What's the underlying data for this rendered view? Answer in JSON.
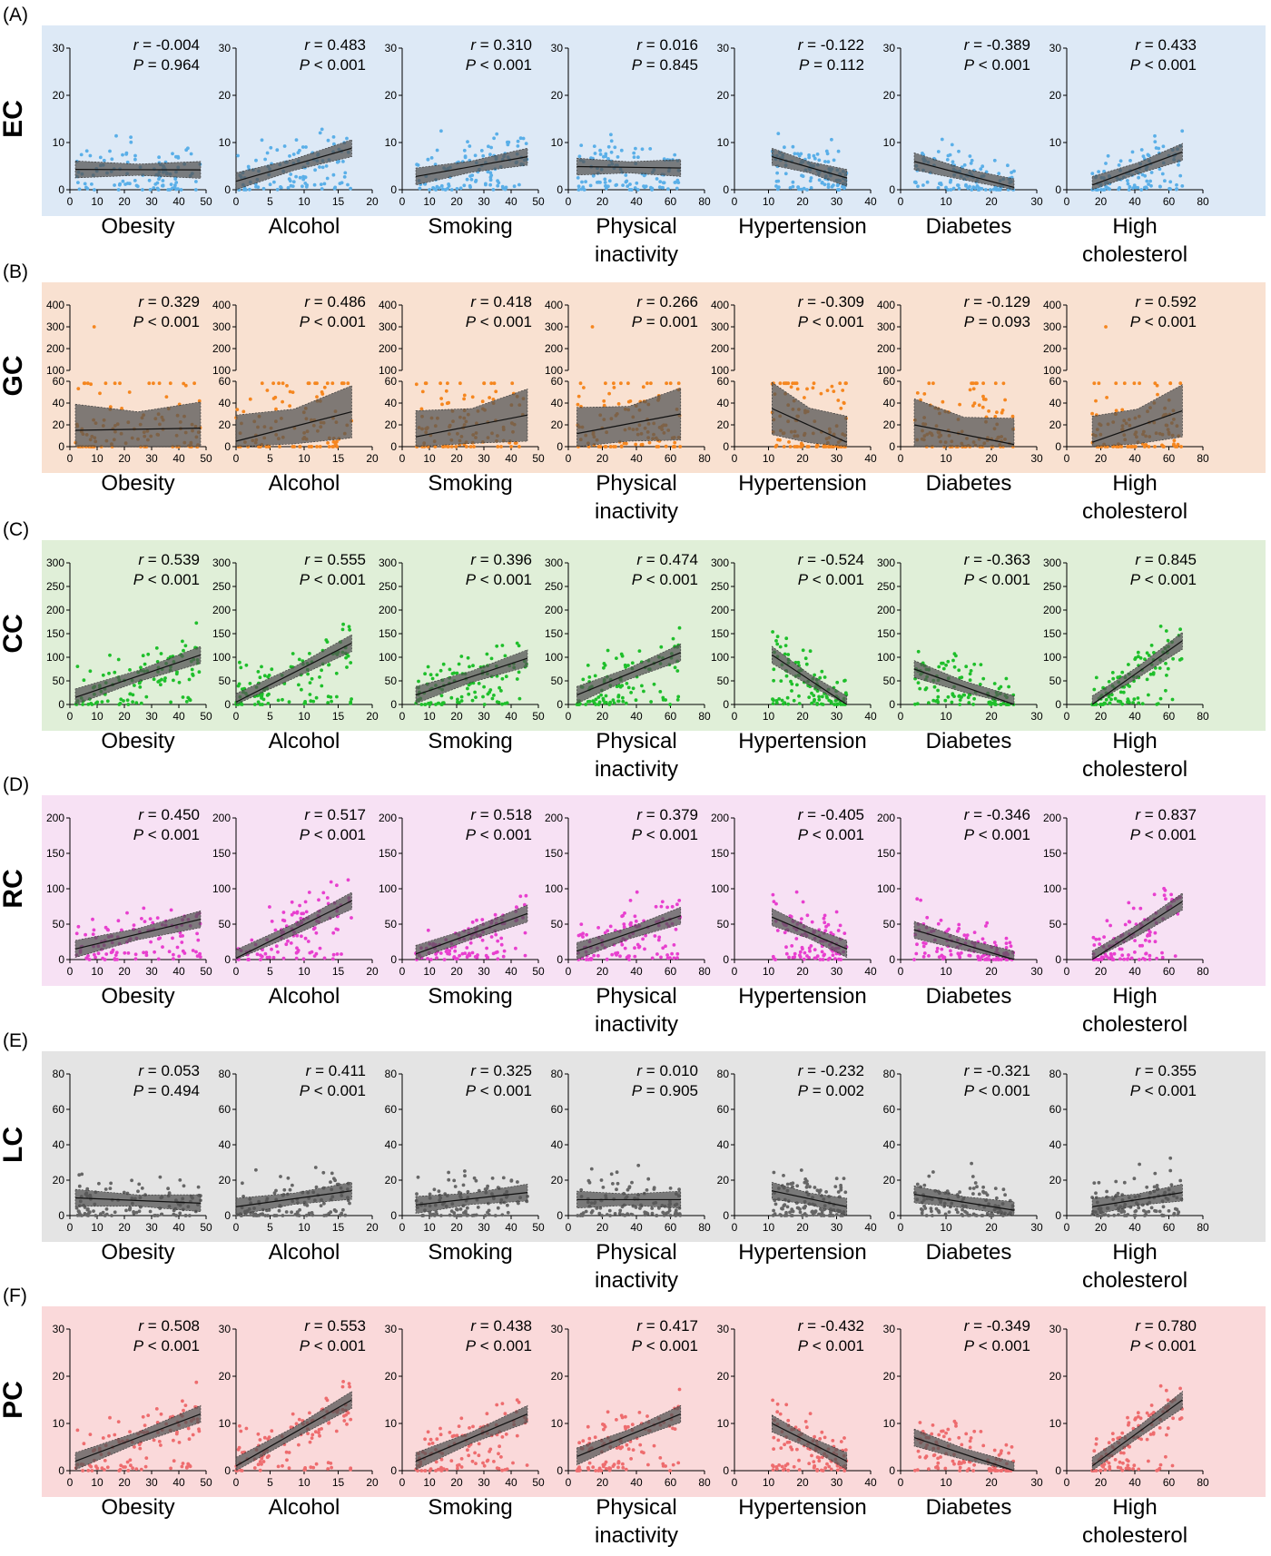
{
  "figure": {
    "x_labels": [
      [
        "Obesity"
      ],
      [
        "Alcohol"
      ],
      [
        "Smoking"
      ],
      [
        "Physical",
        "inactivity"
      ],
      [
        "Hypertension"
      ],
      [
        "Diabetes"
      ],
      [
        "High",
        "cholesterol"
      ]
    ],
    "x_ranges": [
      [
        0,
        50
      ],
      [
        0,
        20
      ],
      [
        0,
        50
      ],
      [
        0,
        80
      ],
      [
        0,
        40
      ],
      [
        0,
        30
      ],
      [
        0,
        80
      ]
    ],
    "x_ticks": [
      [
        0,
        10,
        20,
        30,
        40,
        50
      ],
      [
        0,
        5,
        10,
        15,
        20
      ],
      [
        0,
        10,
        20,
        30,
        40,
        50
      ],
      [
        0,
        20,
        40,
        60,
        80
      ],
      [
        0,
        10,
        20,
        30,
        40
      ],
      [
        0,
        10,
        20,
        30
      ],
      [
        0,
        20,
        40,
        60,
        80
      ]
    ],
    "x_extents": [
      [
        2,
        48
      ],
      [
        0,
        17
      ],
      [
        5,
        46
      ],
      [
        5,
        66
      ],
      [
        11,
        33
      ],
      [
        3,
        25
      ],
      [
        15,
        68
      ]
    ]
  },
  "chart_data": [
    {
      "type": "scatter",
      "panel": "(A)",
      "row_label": "EC",
      "color": "#5aafe8",
      "background": "#dde9f6",
      "ylim": [
        0,
        30
      ],
      "yticks": [
        0,
        10,
        20,
        30
      ],
      "panels": [
        {
          "x_label": "Obesity",
          "r": "-0.004",
          "P": "= 0.964",
          "fit": [
            4.3,
            4.2
          ]
        },
        {
          "x_label": "Alcohol",
          "r": "0.483",
          "P": "< 0.001",
          "fit": [
            1.8,
            8.8
          ]
        },
        {
          "x_label": "Smoking",
          "r": "0.310",
          "P": "< 0.001",
          "fit": [
            2.8,
            7.0
          ]
        },
        {
          "x_label": "Physical inactivity",
          "r": "0.016",
          "P": "= 0.845",
          "fit": [
            4.9,
            4.6
          ]
        },
        {
          "x_label": "Hypertension",
          "r": "-0.122",
          "P": "= 0.112",
          "fit": [
            7.0,
            2.5
          ]
        },
        {
          "x_label": "Diabetes",
          "r": "-0.389",
          "P": "< 0.001",
          "fit": [
            6.0,
            0.5
          ]
        },
        {
          "x_label": "High cholesterol",
          "r": "0.433",
          "P": "< 0.001",
          "fit": [
            1.0,
            8.0
          ]
        }
      ]
    },
    {
      "type": "scatter",
      "panel": "(B)",
      "row_label": "GC",
      "color": "#f5861f",
      "background": "#f9e1d1",
      "ylim": [
        0,
        400
      ],
      "yticks": [
        0,
        20,
        40,
        60,
        100,
        200,
        300,
        400
      ],
      "axis_break": true,
      "panels": [
        {
          "x_label": "Obesity",
          "r": "0.329",
          "P": "< 0.001",
          "fit": [
            15.0,
            17.0
          ]
        },
        {
          "x_label": "Alcohol",
          "r": "0.486",
          "P": "< 0.001",
          "fit": [
            5.0,
            32.0
          ]
        },
        {
          "x_label": "Smoking",
          "r": "0.418",
          "P": "< 0.001",
          "fit": [
            9.0,
            29.0
          ]
        },
        {
          "x_label": "Physical inactivity",
          "r": "0.266",
          "P": "= 0.001",
          "fit": [
            12.0,
            30.0
          ]
        },
        {
          "x_label": "Hypertension",
          "r": "-0.309",
          "P": "< 0.001",
          "fit": [
            35.0,
            4.0
          ]
        },
        {
          "x_label": "Diabetes",
          "r": "-0.129",
          "P": "= 0.093",
          "fit": [
            20.0,
            2.0
          ]
        },
        {
          "x_label": "High cholesterol",
          "r": "0.592",
          "P": "< 0.001",
          "fit": [
            4.0,
            33.0
          ]
        }
      ]
    },
    {
      "type": "scatter",
      "panel": "(C)",
      "row_label": "CC",
      "color": "#1fbf2b",
      "background": "#e0efd8",
      "ylim": [
        0,
        300
      ],
      "yticks": [
        0,
        50,
        100,
        150,
        200,
        250,
        300
      ],
      "panels": [
        {
          "x_label": "Obesity",
          "r": "0.539",
          "P": "< 0.001",
          "fit": [
            15.0,
            105.0
          ]
        },
        {
          "x_label": "Alcohol",
          "r": "0.555",
          "P": "< 0.001",
          "fit": [
            5.0,
            130.0
          ]
        },
        {
          "x_label": "Smoking",
          "r": "0.396",
          "P": "< 0.001",
          "fit": [
            20.0,
            98.0
          ]
        },
        {
          "x_label": "Physical inactivity",
          "r": "0.474",
          "P": "< 0.001",
          "fit": [
            20.0,
            110.0
          ]
        },
        {
          "x_label": "Hypertension",
          "r": "-0.524",
          "P": "< 0.001",
          "fit": [
            105.0,
            0.0
          ]
        },
        {
          "x_label": "Diabetes",
          "r": "-0.363",
          "P": "< 0.001",
          "fit": [
            75.0,
            0.0
          ]
        },
        {
          "x_label": "High cholesterol",
          "r": "0.845",
          "P": "< 0.001",
          "fit": [
            0.0,
            135.0
          ]
        }
      ]
    },
    {
      "type": "scatter",
      "panel": "(D)",
      "row_label": "RC",
      "color": "#e83fcf",
      "background": "#f7e1f4",
      "ylim": [
        0,
        200
      ],
      "yticks": [
        0,
        50,
        100,
        150,
        200
      ],
      "panels": [
        {
          "x_label": "Obesity",
          "r": "0.450",
          "P": "< 0.001",
          "fit": [
            15.0,
            57.0
          ]
        },
        {
          "x_label": "Alcohol",
          "r": "0.517",
          "P": "< 0.001",
          "fit": [
            2.0,
            83.0
          ]
        },
        {
          "x_label": "Smoking",
          "r": "0.518",
          "P": "< 0.001",
          "fit": [
            8.0,
            65.0
          ]
        },
        {
          "x_label": "Physical inactivity",
          "r": "0.379",
          "P": "< 0.001",
          "fit": [
            12.0,
            62.0
          ]
        },
        {
          "x_label": "Hypertension",
          "r": "-0.405",
          "P": "< 0.001",
          "fit": [
            60.0,
            15.0
          ]
        },
        {
          "x_label": "Diabetes",
          "r": "-0.346",
          "P": "< 0.001",
          "fit": [
            42.0,
            0.0
          ]
        },
        {
          "x_label": "High cholesterol",
          "r": "0.837",
          "P": "< 0.001",
          "fit": [
            0.0,
            82.0
          ]
        }
      ]
    },
    {
      "type": "scatter",
      "panel": "(E)",
      "row_label": "LC",
      "color": "#666666",
      "background": "#e4e4e4",
      "ylim": [
        0,
        80
      ],
      "yticks": [
        0,
        20,
        40,
        60,
        80
      ],
      "panels": [
        {
          "x_label": "Obesity",
          "r": "0.053",
          "P": "= 0.494",
          "fit": [
            10.0,
            7.0
          ]
        },
        {
          "x_label": "Alcohol",
          "r": "0.411",
          "P": "< 0.001",
          "fit": [
            5.0,
            14.0
          ]
        },
        {
          "x_label": "Smoking",
          "r": "0.325",
          "P": "< 0.001",
          "fit": [
            6.0,
            13.0
          ]
        },
        {
          "x_label": "Physical inactivity",
          "r": "0.010",
          "P": "= 0.905",
          "fit": [
            9.0,
            9.0
          ]
        },
        {
          "x_label": "Hypertension",
          "r": "-0.232",
          "P": "= 0.002",
          "fit": [
            14.0,
            5.0
          ]
        },
        {
          "x_label": "Diabetes",
          "r": "-0.321",
          "P": "< 0.001",
          "fit": [
            12.0,
            3.0
          ]
        },
        {
          "x_label": "High cholesterol",
          "r": "0.355",
          "P": "< 0.001",
          "fit": [
            5.0,
            13.0
          ]
        }
      ]
    },
    {
      "type": "scatter",
      "panel": "(F)",
      "row_label": "PC",
      "color": "#ee6c6e",
      "background": "#fad9da",
      "ylim": [
        0,
        30
      ],
      "yticks": [
        0,
        10,
        20,
        30
      ],
      "panels": [
        {
          "x_label": "Obesity",
          "r": "0.508",
          "P": "< 0.001",
          "fit": [
            2.0,
            12.0
          ]
        },
        {
          "x_label": "Alcohol",
          "r": "0.553",
          "P": "< 0.001",
          "fit": [
            1.0,
            15.0
          ]
        },
        {
          "x_label": "Smoking",
          "r": "0.438",
          "P": "< 0.001",
          "fit": [
            2.0,
            12.0
          ]
        },
        {
          "x_label": "Physical inactivity",
          "r": "0.417",
          "P": "< 0.001",
          "fit": [
            3.0,
            12.0
          ]
        },
        {
          "x_label": "Hypertension",
          "r": "-0.432",
          "P": "< 0.001",
          "fit": [
            10.0,
            2.0
          ]
        },
        {
          "x_label": "Diabetes",
          "r": "-0.349",
          "P": "< 0.001",
          "fit": [
            7.0,
            0.0
          ]
        },
        {
          "x_label": "High cholesterol",
          "r": "0.780",
          "P": "< 0.001",
          "fit": [
            1.0,
            15.0
          ]
        }
      ]
    }
  ]
}
